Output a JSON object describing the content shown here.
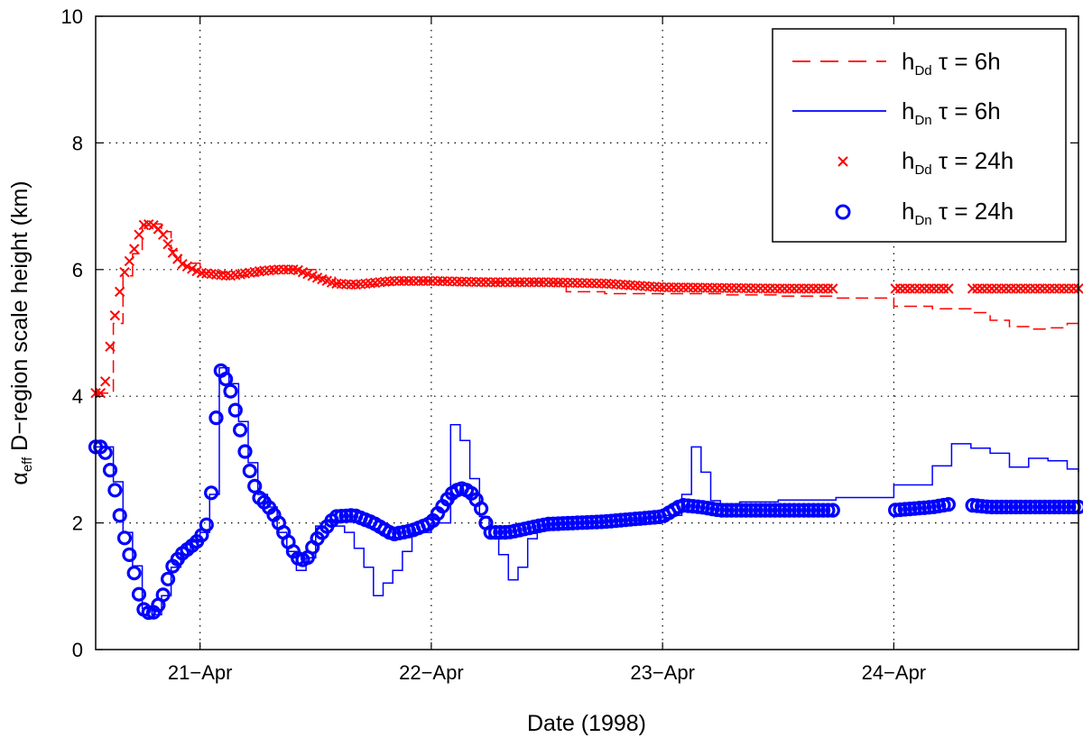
{
  "chart_data": {
    "type": "line",
    "xlabel": "Date (1998)",
    "ylabel_main": "α",
    "ylabel_sub": "eff",
    "ylabel_rest": " D−region scale height (km)",
    "x_ticks": [
      {
        "x": "1998-04-21T00:00",
        "label": "21−Apr"
      },
      {
        "x": "1998-04-22T00:00",
        "label": "22−Apr"
      },
      {
        "x": "1998-04-23T00:00",
        "label": "23−Apr"
      },
      {
        "x": "1998-04-24T00:00",
        "label": "24−Apr"
      }
    ],
    "xlim": [
      "1998-04-20T13:10",
      "1998-04-24T19:10"
    ],
    "ylim": [
      0,
      10
    ],
    "y_ticks": [
      0,
      2,
      4,
      6,
      8,
      10
    ],
    "y_tick_labels": [
      "0",
      "2",
      "4",
      "6",
      "8",
      "10"
    ],
    "grid": true,
    "legend_position": "top-right",
    "colors": {
      "red": "#ff0000",
      "blue": "#0000ff"
    },
    "series": [
      {
        "name": "hDd τ = 6h",
        "name_main": "h",
        "name_sub": "Dd",
        "name_rest": " τ = 6h",
        "style": "dashed",
        "color": "#ff0000",
        "x": [
          "1998-04-20T13:10",
          "1998-04-20T14:00",
          "1998-04-20T15:00",
          "1998-04-20T16:00",
          "1998-04-20T17:00",
          "1998-04-20T18:00",
          "1998-04-20T19:00",
          "1998-04-20T20:00",
          "1998-04-20T21:00",
          "1998-04-20T22:00",
          "1998-04-21T00:00",
          "1998-04-21T03:00",
          "1998-04-21T06:00",
          "1998-04-21T08:00",
          "1998-04-21T10:00",
          "1998-04-21T12:00",
          "1998-04-21T14:00",
          "1998-04-21T16:00",
          "1998-04-21T20:00",
          "1998-04-22T00:00",
          "1998-04-22T06:00",
          "1998-04-22T10:00",
          "1998-04-22T12:00",
          "1998-04-22T14:00",
          "1998-04-22T18:00",
          "1998-04-23T00:00",
          "1998-04-23T06:00",
          "1998-04-23T12:00",
          "1998-04-23T18:00",
          "1998-04-24T00:00",
          "1998-04-24T04:00",
          "1998-04-24T08:00",
          "1998-04-24T10:00",
          "1998-04-24T12:00",
          "1998-04-24T14:00",
          "1998-04-24T16:00",
          "1998-04-24T18:00",
          "1998-04-24T19:10"
        ],
        "y": [
          4.05,
          4.05,
          5.15,
          5.9,
          6.25,
          6.7,
          6.72,
          6.6,
          6.3,
          6.1,
          5.95,
          5.9,
          5.97,
          6.0,
          6.0,
          5.88,
          5.78,
          5.76,
          5.82,
          5.82,
          5.8,
          5.8,
          5.79,
          5.65,
          5.62,
          5.62,
          5.6,
          5.58,
          5.55,
          5.42,
          5.38,
          5.32,
          5.2,
          5.1,
          5.06,
          5.08,
          5.15,
          5.22
        ]
      },
      {
        "name": "hDn τ = 6h",
        "name_main": "h",
        "name_sub": "Dn",
        "name_rest": " τ = 6h",
        "style": "solid",
        "color": "#0000ff",
        "x": [
          "1998-04-20T13:10",
          "1998-04-20T14:00",
          "1998-04-20T15:00",
          "1998-04-20T16:00",
          "1998-04-20T17:00",
          "1998-04-20T18:00",
          "1998-04-20T19:00",
          "1998-04-20T20:00",
          "1998-04-20T21:00",
          "1998-04-20T22:00",
          "1998-04-20T23:00",
          "1998-04-21T00:00",
          "1998-04-21T01:00",
          "1998-04-21T02:00",
          "1998-04-21T03:00",
          "1998-04-21T04:00",
          "1998-04-21T05:00",
          "1998-04-21T06:00",
          "1998-04-21T07:00",
          "1998-04-21T08:00",
          "1998-04-21T09:00",
          "1998-04-21T10:00",
          "1998-04-21T11:00",
          "1998-04-21T12:00",
          "1998-04-21T13:00",
          "1998-04-21T14:00",
          "1998-04-21T15:00",
          "1998-04-21T16:00",
          "1998-04-21T17:00",
          "1998-04-21T18:00",
          "1998-04-21T19:00",
          "1998-04-21T20:00",
          "1998-04-21T21:00",
          "1998-04-21T22:00",
          "1998-04-22T00:00",
          "1998-04-22T02:00",
          "1998-04-22T03:00",
          "1998-04-22T04:00",
          "1998-04-22T05:00",
          "1998-04-22T06:00",
          "1998-04-22T07:00",
          "1998-04-22T08:00",
          "1998-04-22T09:00",
          "1998-04-22T10:00",
          "1998-04-22T11:00",
          "1998-04-22T12:00",
          "1998-04-22T14:00",
          "1998-04-22T18:00",
          "1998-04-22T22:00",
          "1998-04-23T00:00",
          "1998-04-23T02:00",
          "1998-04-23T03:00",
          "1998-04-23T04:00",
          "1998-04-23T05:00",
          "1998-04-23T06:00",
          "1998-04-23T08:00",
          "1998-04-23T12:00",
          "1998-04-23T18:00",
          "1998-04-24T00:00",
          "1998-04-24T04:00",
          "1998-04-24T06:00",
          "1998-04-24T08:00",
          "1998-04-24T10:00",
          "1998-04-24T12:00",
          "1998-04-24T14:00",
          "1998-04-24T16:00",
          "1998-04-24T18:00",
          "1998-04-24T19:10"
        ],
        "y": [
          3.2,
          3.2,
          2.65,
          1.85,
          1.32,
          0.65,
          0.55,
          0.85,
          1.3,
          1.5,
          1.7,
          1.85,
          2.45,
          4.45,
          4.2,
          3.6,
          2.95,
          2.45,
          2.25,
          1.85,
          1.55,
          1.25,
          1.45,
          1.95,
          2.05,
          1.95,
          1.85,
          1.6,
          1.3,
          0.85,
          1.05,
          1.25,
          1.55,
          1.85,
          2.0,
          3.55,
          3.3,
          2.7,
          2.1,
          1.75,
          1.5,
          1.1,
          1.3,
          1.75,
          1.9,
          1.98,
          2.0,
          2.03,
          2.08,
          2.12,
          2.45,
          3.2,
          2.8,
          2.35,
          2.3,
          2.33,
          2.36,
          2.4,
          2.6,
          2.9,
          3.25,
          3.18,
          3.1,
          2.88,
          3.02,
          2.98,
          2.85,
          2.8
        ]
      },
      {
        "name": "hDd τ = 24h",
        "name_main": "h",
        "name_sub": "Dd",
        "name_rest": " τ = 24h",
        "style": "x-markers",
        "color": "#ff0000",
        "x": [
          "1998-04-20T13:10",
          "1998-04-20T14:00",
          "1998-04-20T15:00",
          "1998-04-20T16:00",
          "1998-04-20T17:00",
          "1998-04-20T18:00",
          "1998-04-20T19:00",
          "1998-04-20T20:00",
          "1998-04-20T21:00",
          "1998-04-20T22:00",
          "1998-04-21T00:00",
          "1998-04-21T03:00",
          "1998-04-21T06:00",
          "1998-04-21T08:00",
          "1998-04-21T10:00",
          "1998-04-21T12:00",
          "1998-04-21T14:00",
          "1998-04-21T16:00",
          "1998-04-21T20:00",
          "1998-04-22T00:00",
          "1998-04-22T06:00",
          "1998-04-22T12:00",
          "1998-04-22T18:00",
          "1998-04-23T00:00",
          "1998-04-23T06:00",
          "1998-04-23T12:00",
          "1998-04-23T18:00",
          "1998-04-24T00:00",
          "1998-04-24T06:00",
          "1998-04-24T12:00",
          "1998-04-24T18:00",
          "1998-04-24T19:10"
        ],
        "y": [
          4.05,
          4.05,
          5.15,
          5.9,
          6.25,
          6.7,
          6.72,
          6.6,
          6.3,
          6.1,
          5.95,
          5.9,
          5.97,
          6.0,
          6.0,
          5.88,
          5.78,
          5.76,
          5.82,
          5.82,
          5.8,
          5.8,
          5.78,
          5.72,
          5.71,
          5.7,
          5.7,
          5.7,
          5.7,
          5.7,
          5.7,
          5.7
        ],
        "gaps": [
          [
            "1998-04-23T18:00",
            "1998-04-24T00:00"
          ],
          [
            "1998-04-24T06:00",
            "1998-04-24T08:00"
          ]
        ]
      },
      {
        "name": "hDn τ = 24h",
        "name_main": "h",
        "name_sub": "Dn",
        "name_rest": " τ = 24h",
        "style": "o-markers",
        "color": "#0000ff",
        "x": [
          "1998-04-20T13:10",
          "1998-04-20T14:00",
          "1998-04-20T15:00",
          "1998-04-20T16:00",
          "1998-04-20T17:00",
          "1998-04-20T18:00",
          "1998-04-20T19:00",
          "1998-04-20T20:00",
          "1998-04-20T21:00",
          "1998-04-20T22:00",
          "1998-04-20T23:00",
          "1998-04-21T00:00",
          "1998-04-21T01:00",
          "1998-04-21T02:00",
          "1998-04-21T03:00",
          "1998-04-21T04:00",
          "1998-04-21T05:00",
          "1998-04-21T06:00",
          "1998-04-21T07:00",
          "1998-04-21T08:00",
          "1998-04-21T09:00",
          "1998-04-21T10:00",
          "1998-04-21T11:00",
          "1998-04-21T12:00",
          "1998-04-21T14:00",
          "1998-04-21T16:00",
          "1998-04-21T18:00",
          "1998-04-21T20:00",
          "1998-04-21T22:00",
          "1998-04-22T00:00",
          "1998-04-22T02:00",
          "1998-04-22T03:00",
          "1998-04-22T04:00",
          "1998-04-22T05:00",
          "1998-04-22T06:00",
          "1998-04-22T08:00",
          "1998-04-22T12:00",
          "1998-04-22T18:00",
          "1998-04-23T00:00",
          "1998-04-23T02:00",
          "1998-04-23T04:00",
          "1998-04-23T06:00",
          "1998-04-23T12:00",
          "1998-04-23T18:00",
          "1998-04-24T00:00",
          "1998-04-24T04:00",
          "1998-04-24T06:00",
          "1998-04-24T08:00",
          "1998-04-24T10:00",
          "1998-04-24T14:00",
          "1998-04-24T18:00",
          "1998-04-24T19:10"
        ],
        "y": [
          3.2,
          3.2,
          2.65,
          1.85,
          1.32,
          0.65,
          0.55,
          0.78,
          1.28,
          1.5,
          1.62,
          1.75,
          2.08,
          4.45,
          4.18,
          3.58,
          2.9,
          2.42,
          2.28,
          2.05,
          1.75,
          1.45,
          1.4,
          1.72,
          2.1,
          2.12,
          2.0,
          1.82,
          1.88,
          2.0,
          2.45,
          2.55,
          2.5,
          2.3,
          1.85,
          1.85,
          1.98,
          2.02,
          2.1,
          2.28,
          2.25,
          2.2,
          2.2,
          2.2,
          2.2,
          2.25,
          2.3,
          2.28,
          2.25,
          2.25,
          2.25,
          2.25
        ],
        "gaps": [
          [
            "1998-04-23T18:00",
            "1998-04-24T00:00"
          ],
          [
            "1998-04-24T06:00",
            "1998-04-24T08:00"
          ]
        ]
      }
    ]
  }
}
